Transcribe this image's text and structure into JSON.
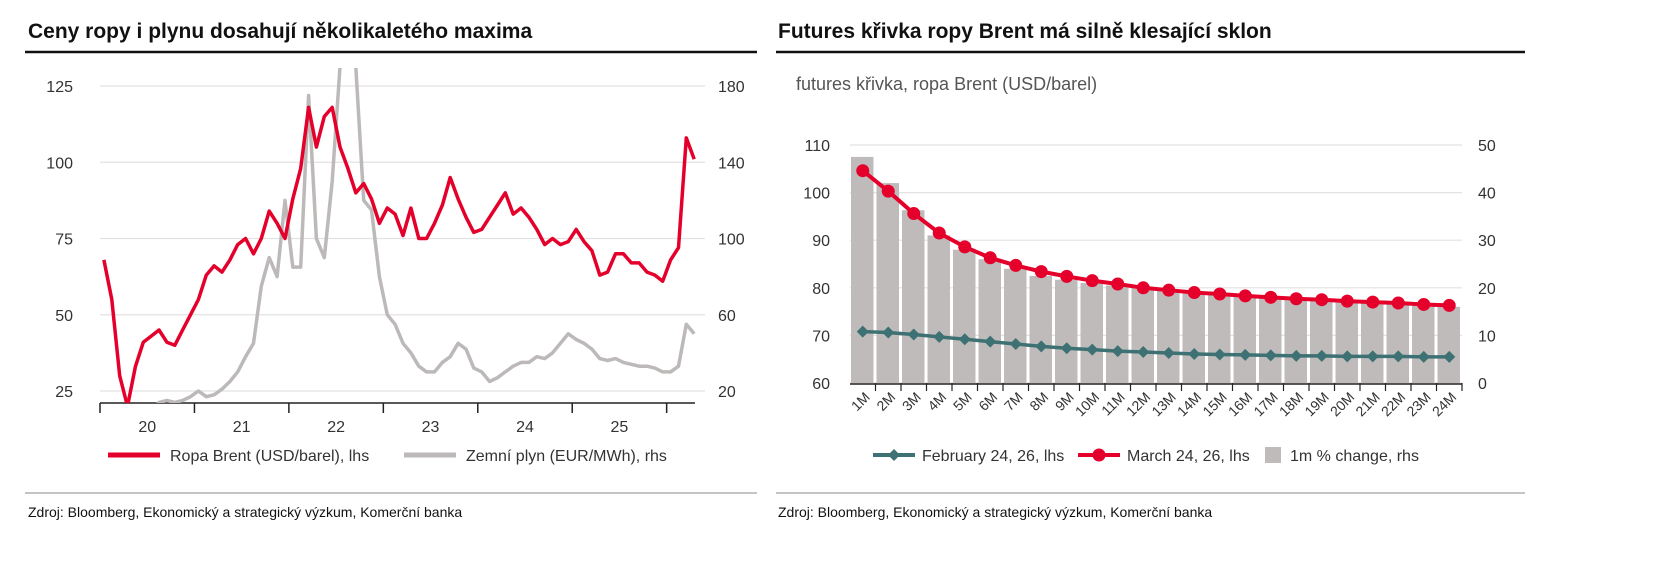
{
  "colors": {
    "brent": "#e4002b",
    "gas": "#bdb9b9",
    "feb": "#3d7173",
    "mar": "#e4002b",
    "bars": "#bfbbbb",
    "grid": "#e2e2e2"
  },
  "chart_data": [
    {
      "type": "line",
      "title": "Ceny ropy i plynu dosahují několikaletého maxima",
      "x_ticks": [
        "20",
        "21",
        "22",
        "23",
        "24",
        "25"
      ],
      "y_left": {
        "ticks": [
          25,
          50,
          75,
          100,
          125
        ],
        "range": [
          21,
          130
        ]
      },
      "y_right": {
        "ticks": [
          20,
          60,
          100,
          140,
          180
        ],
        "range": [
          13.7,
          188
        ]
      },
      "x_start_year": 2020,
      "grid": true,
      "legend": "bottom",
      "series": [
        {
          "name": "Ropa Brent (USD/barel), lhs",
          "axis": "left",
          "frequency": "monthly",
          "values": [
            68,
            55,
            30,
            20,
            33,
            41,
            43,
            45,
            41,
            40,
            45,
            50,
            55,
            63,
            66,
            64,
            68,
            73,
            75,
            70,
            75,
            84,
            80,
            75,
            88,
            98,
            118,
            105,
            115,
            118,
            105,
            98,
            90,
            93,
            88,
            80,
            85,
            83,
            76,
            85,
            75,
            75,
            80,
            86,
            95,
            88,
            82,
            77,
            78,
            82,
            86,
            90,
            83,
            85,
            82,
            78,
            73,
            75,
            73,
            74,
            78,
            74,
            71,
            63,
            64,
            70,
            70,
            67,
            67,
            64,
            63,
            61,
            68,
            72,
            108,
            101
          ]
        },
        {
          "name": "Zemní plyn (EUR/MWh), rhs",
          "axis": "right",
          "frequency": "monthly",
          "values": [
            12,
            10,
            9,
            7,
            5,
            7,
            9,
            14,
            15,
            14,
            15,
            17,
            20,
            17,
            18,
            21,
            25,
            30,
            38,
            45,
            75,
            90,
            80,
            120,
            85,
            85,
            175,
            100,
            90,
            130,
            190,
            240,
            190,
            120,
            115,
            80,
            60,
            55,
            45,
            40,
            33,
            30,
            30,
            35,
            38,
            45,
            42,
            32,
            30,
            25,
            27,
            30,
            33,
            35,
            35,
            38,
            37,
            40,
            45,
            50,
            47,
            45,
            42,
            37,
            36,
            37,
            35,
            34,
            33,
            33,
            32,
            30,
            30,
            33,
            55,
            50
          ]
        }
      ],
      "source": "Zdroj: Bloomberg, Ekonomický a strategický výzkum, Komerční banka"
    },
    {
      "type": "bar+line",
      "title": "Futures křivka ropy Brent má silně klesající sklon",
      "subtitle": "futures křivka, ropa Brent (USD/barel)",
      "categories": [
        "1M",
        "2M",
        "3M",
        "4M",
        "5M",
        "6M",
        "7M",
        "8M",
        "9M",
        "10M",
        "11M",
        "12M",
        "13M",
        "14M",
        "15M",
        "16M",
        "17M",
        "18M",
        "19M",
        "20M",
        "21M",
        "22M",
        "23M",
        "24M"
      ],
      "y_left": {
        "ticks": [
          60,
          70,
          80,
          90,
          100,
          110
        ],
        "range": [
          60,
          110
        ]
      },
      "y_right": {
        "ticks": [
          0,
          10,
          20,
          30,
          40,
          50
        ],
        "range": [
          0,
          50
        ]
      },
      "grid": true,
      "legend": "bottom",
      "series": [
        {
          "name": "February 24, 26, lhs",
          "type": "line",
          "axis": "left",
          "values": [
            70.8,
            70.6,
            70.2,
            69.7,
            69.2,
            68.7,
            68.2,
            67.7,
            67.3,
            67.0,
            66.7,
            66.5,
            66.3,
            66.1,
            66.0,
            65.9,
            65.8,
            65.7,
            65.7,
            65.6,
            65.6,
            65.6,
            65.5,
            65.5
          ]
        },
        {
          "name": "March 24, 26, lhs",
          "type": "line",
          "axis": "left",
          "values": [
            104.6,
            100.3,
            95.6,
            91.5,
            88.6,
            86.3,
            84.7,
            83.4,
            82.4,
            81.5,
            80.8,
            80.0,
            79.5,
            79.0,
            78.7,
            78.3,
            78.0,
            77.7,
            77.5,
            77.2,
            77.0,
            76.8,
            76.5,
            76.3
          ]
        },
        {
          "name": "1m % change, rhs",
          "type": "bar",
          "axis": "right",
          "values": [
            47.5,
            42,
            36.3,
            31,
            28,
            26,
            24,
            22.5,
            21.7,
            21,
            20.5,
            20,
            19.5,
            19,
            18.7,
            18.3,
            18,
            17.5,
            17.3,
            17,
            16.8,
            16.5,
            16.2,
            16
          ]
        }
      ],
      "source": "Zdroj: Bloomberg, Ekonomický a strategický výzkum, Komerční banka"
    }
  ]
}
